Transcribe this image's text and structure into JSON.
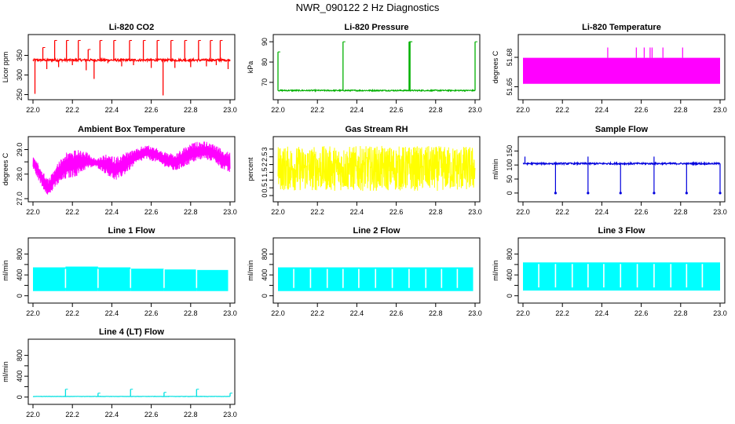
{
  "figure": {
    "title": "NWR_090122  2 Hz Diagnostics"
  },
  "chart_data": [
    {
      "type": "line",
      "title": "Li-820 CO2",
      "ylabel": "Licor ppm",
      "color": "#ff0000",
      "xlim": [
        22.0,
        23.0
      ],
      "ylim": [
        245,
        395
      ],
      "xticks": [
        "22.0",
        "22.2",
        "22.4",
        "22.6",
        "22.8",
        "23.0"
      ],
      "yticks": [
        250,
        300,
        350
      ],
      "baseline": 338,
      "noise": 3,
      "spikes": [
        {
          "x": 22.01,
          "y": 252
        },
        {
          "x": 22.05,
          "y": 370
        },
        {
          "x": 22.07,
          "y": 315
        },
        {
          "x": 22.11,
          "y": 388
        },
        {
          "x": 22.13,
          "y": 320
        },
        {
          "x": 22.17,
          "y": 388
        },
        {
          "x": 22.2,
          "y": 325
        },
        {
          "x": 22.23,
          "y": 388
        },
        {
          "x": 22.27,
          "y": 312
        },
        {
          "x": 22.28,
          "y": 365
        },
        {
          "x": 22.31,
          "y": 290
        },
        {
          "x": 22.34,
          "y": 388
        },
        {
          "x": 22.38,
          "y": 330
        },
        {
          "x": 22.41,
          "y": 388
        },
        {
          "x": 22.45,
          "y": 322
        },
        {
          "x": 22.49,
          "y": 388
        },
        {
          "x": 22.51,
          "y": 325
        },
        {
          "x": 22.56,
          "y": 388
        },
        {
          "x": 22.6,
          "y": 318
        },
        {
          "x": 22.63,
          "y": 388
        },
        {
          "x": 22.66,
          "y": 248
        },
        {
          "x": 22.7,
          "y": 388
        },
        {
          "x": 22.72,
          "y": 318
        },
        {
          "x": 22.77,
          "y": 388
        },
        {
          "x": 22.8,
          "y": 320
        },
        {
          "x": 22.84,
          "y": 388
        },
        {
          "x": 22.88,
          "y": 322
        },
        {
          "x": 22.9,
          "y": 388
        },
        {
          "x": 22.93,
          "y": 325
        },
        {
          "x": 22.95,
          "y": 388
        },
        {
          "x": 22.99,
          "y": 315
        }
      ]
    },
    {
      "type": "line",
      "title": "Li-820 Pressure",
      "ylabel": "kPa",
      "color": "#00b000",
      "xlim": [
        22.0,
        23.0
      ],
      "ylim": [
        63,
        92
      ],
      "xticks": [
        "22.0",
        "22.2",
        "22.4",
        "22.6",
        "22.8",
        "23.0"
      ],
      "yticks": [
        70,
        80,
        90
      ],
      "baseline": 66,
      "noise": 0.3,
      "spikes": [
        {
          "x": 22.0,
          "y": 85
        },
        {
          "x": 22.33,
          "y": 90
        },
        {
          "x": 22.665,
          "y": 90
        },
        {
          "x": 22.67,
          "y": 90
        },
        {
          "x": 23.0,
          "y": 90
        }
      ]
    },
    {
      "type": "area",
      "title": "Li-820 Temperature",
      "ylabel": "degrees C",
      "color": "#ff00ff",
      "xlim": [
        22.0,
        23.0
      ],
      "ylim": [
        51.64,
        51.7
      ],
      "xticks": [
        "22.0",
        "22.2",
        "22.4",
        "22.6",
        "22.8",
        "23.0"
      ],
      "yticks": [
        51.65,
        51.68
      ],
      "fill_min": 51.653,
      "fill_max": 51.6795,
      "spikes": [
        {
          "x": 22.43,
          "y": 51.69
        },
        {
          "x": 22.575,
          "y": 51.69
        },
        {
          "x": 22.615,
          "y": 51.69
        },
        {
          "x": 22.645,
          "y": 51.69
        },
        {
          "x": 22.655,
          "y": 51.69
        },
        {
          "x": 22.71,
          "y": 51.69
        },
        {
          "x": 22.81,
          "y": 51.69
        }
      ]
    },
    {
      "type": "line",
      "title": "Ambient Box Temperature",
      "ylabel": "degrees C",
      "color": "#ff00ff",
      "xlim": [
        22.0,
        23.0
      ],
      "ylim": [
        27.0,
        29.4
      ],
      "xticks": [
        "22.0",
        "22.2",
        "22.4",
        "22.6",
        "22.8",
        "23.0"
      ],
      "yticks": [
        27.0,
        28.0,
        28.5,
        29.0
      ],
      "ytick_labels": [
        "27.0",
        "28.0",
        "",
        "29.0"
      ],
      "envelope": [
        {
          "x": 22.0,
          "lo": 28.2,
          "hi": 28.8
        },
        {
          "x": 22.05,
          "lo": 27.4,
          "hi": 28.1
        },
        {
          "x": 22.08,
          "lo": 27.1,
          "hi": 27.8
        },
        {
          "x": 22.12,
          "lo": 27.5,
          "hi": 28.4
        },
        {
          "x": 22.17,
          "lo": 27.8,
          "hi": 28.9
        },
        {
          "x": 22.22,
          "lo": 27.9,
          "hi": 29.0
        },
        {
          "x": 22.27,
          "lo": 28.2,
          "hi": 28.9
        },
        {
          "x": 22.32,
          "lo": 28.3,
          "hi": 28.6
        },
        {
          "x": 22.37,
          "lo": 28.0,
          "hi": 28.8
        },
        {
          "x": 22.42,
          "lo": 27.7,
          "hi": 28.7
        },
        {
          "x": 22.47,
          "lo": 28.0,
          "hi": 28.9
        },
        {
          "x": 22.52,
          "lo": 28.4,
          "hi": 29.0
        },
        {
          "x": 22.57,
          "lo": 28.6,
          "hi": 29.2
        },
        {
          "x": 22.62,
          "lo": 28.5,
          "hi": 29.1
        },
        {
          "x": 22.67,
          "lo": 28.3,
          "hi": 28.9
        },
        {
          "x": 22.72,
          "lo": 28.1,
          "hi": 28.8
        },
        {
          "x": 22.77,
          "lo": 28.3,
          "hi": 29.1
        },
        {
          "x": 22.82,
          "lo": 28.5,
          "hi": 29.3
        },
        {
          "x": 22.87,
          "lo": 28.6,
          "hi": 29.35
        },
        {
          "x": 22.92,
          "lo": 28.5,
          "hi": 29.2
        },
        {
          "x": 22.96,
          "lo": 28.2,
          "hi": 29.0
        },
        {
          "x": 23.0,
          "lo": 28.0,
          "hi": 28.9
        }
      ]
    },
    {
      "type": "line",
      "title": "Gas Stream RH",
      "ylabel": "percent",
      "color": "#ffff00",
      "xlim": [
        22.0,
        23.0
      ],
      "ylim": [
        -0.2,
        3.6
      ],
      "xticks": [
        "22.0",
        "22.2",
        "22.4",
        "22.6",
        "22.8",
        "23.0"
      ],
      "yticks": [
        0.0,
        0.5,
        1.0,
        1.5,
        2.0,
        2.5,
        3.0
      ],
      "band_lo": 0.3,
      "band_hi": 3.2
    },
    {
      "type": "line",
      "title": "Sample Flow",
      "ylabel": "ml/min",
      "color": "#0000dd",
      "xlim": [
        22.0,
        23.0
      ],
      "ylim": [
        -20,
        190
      ],
      "xticks": [
        "22.0",
        "22.2",
        "22.4",
        "22.6",
        "22.8",
        "23.0"
      ],
      "yticks": [
        0,
        50,
        100,
        150
      ],
      "baseline": 105,
      "noise": 3,
      "dips": [
        22.165,
        22.33,
        22.495,
        22.665,
        22.83,
        23.0
      ],
      "peaks": [
        22.01,
        22.33,
        22.665
      ]
    },
    {
      "type": "area",
      "title": "Line 1 Flow",
      "ylabel": "ml/min",
      "color": "#00ffff",
      "xlim": [
        22.0,
        23.0
      ],
      "ylim": [
        -80,
        1050
      ],
      "xticks": [
        "22.0",
        "22.2",
        "22.4",
        "22.6",
        "22.8",
        "23.0"
      ],
      "yticks": [
        0,
        200,
        400,
        600,
        800
      ],
      "ytick_labels": [
        "0",
        "",
        "400",
        "",
        "800"
      ],
      "fill_min": 90,
      "segments": [
        {
          "x0": 22.0,
          "x1": 22.165,
          "top": 545
        },
        {
          "x0": 22.165,
          "x1": 22.33,
          "top": 560
        },
        {
          "x0": 22.33,
          "x1": 22.495,
          "top": 545
        },
        {
          "x0": 22.495,
          "x1": 22.665,
          "top": 520
        },
        {
          "x0": 22.665,
          "x1": 22.83,
          "top": 505
        },
        {
          "x0": 22.83,
          "x1": 22.99,
          "top": 495
        }
      ]
    },
    {
      "type": "area",
      "title": "Line 2 Flow",
      "ylabel": "ml/min",
      "color": "#00ffff",
      "xlim": [
        22.0,
        23.0
      ],
      "ylim": [
        -80,
        1050
      ],
      "xticks": [
        "22.0",
        "22.2",
        "22.4",
        "22.6",
        "22.8",
        "23.0"
      ],
      "yticks": [
        0,
        200,
        400,
        600,
        800
      ],
      "ytick_labels": [
        "0",
        "",
        "400",
        "",
        "800"
      ],
      "fill_min": 90,
      "segments": [
        {
          "x0": 22.0,
          "x1": 22.99,
          "top": 545
        }
      ],
      "gaps": [
        22.165,
        22.33,
        22.495,
        22.665,
        22.83,
        22.08,
        22.25,
        22.41,
        22.58,
        22.75,
        22.91
      ]
    },
    {
      "type": "area",
      "title": "Line 3 Flow",
      "ylabel": "ml/min",
      "color": "#00ffff",
      "xlim": [
        22.0,
        23.0
      ],
      "ylim": [
        -80,
        1050
      ],
      "xticks": [
        "22.0",
        "22.2",
        "22.4",
        "22.6",
        "22.8",
        "23.0"
      ],
      "yticks": [
        0,
        200,
        400,
        600,
        800
      ],
      "ytick_labels": [
        "0",
        "",
        "400",
        "",
        "800"
      ],
      "fill_min": 100,
      "segments": [
        {
          "x0": 22.0,
          "x1": 23.0,
          "top": 640
        }
      ],
      "gaps": [
        22.165,
        22.33,
        22.495,
        22.665,
        22.83,
        22.08,
        22.25,
        22.41,
        22.58,
        22.75,
        22.91
      ]
    },
    {
      "type": "line",
      "title": "Line 4 (LT) Flow",
      "ylabel": "ml/min",
      "color": "#00e0e0",
      "xlim": [
        22.0,
        23.0
      ],
      "ylim": [
        -80,
        1050
      ],
      "xticks": [
        "22.0",
        "22.2",
        "22.4",
        "22.6",
        "22.8",
        "23.0"
      ],
      "yticks": [
        0,
        200,
        400,
        600,
        800
      ],
      "ytick_labels": [
        "0",
        "",
        "400",
        "",
        "800"
      ],
      "baseline": 12,
      "noise": 3,
      "spikes": [
        {
          "x": 22.165,
          "y": 150
        },
        {
          "x": 22.33,
          "y": 75
        },
        {
          "x": 22.495,
          "y": 150
        },
        {
          "x": 22.665,
          "y": 90
        },
        {
          "x": 22.83,
          "y": 150
        },
        {
          "x": 23.0,
          "y": 75
        }
      ]
    }
  ]
}
